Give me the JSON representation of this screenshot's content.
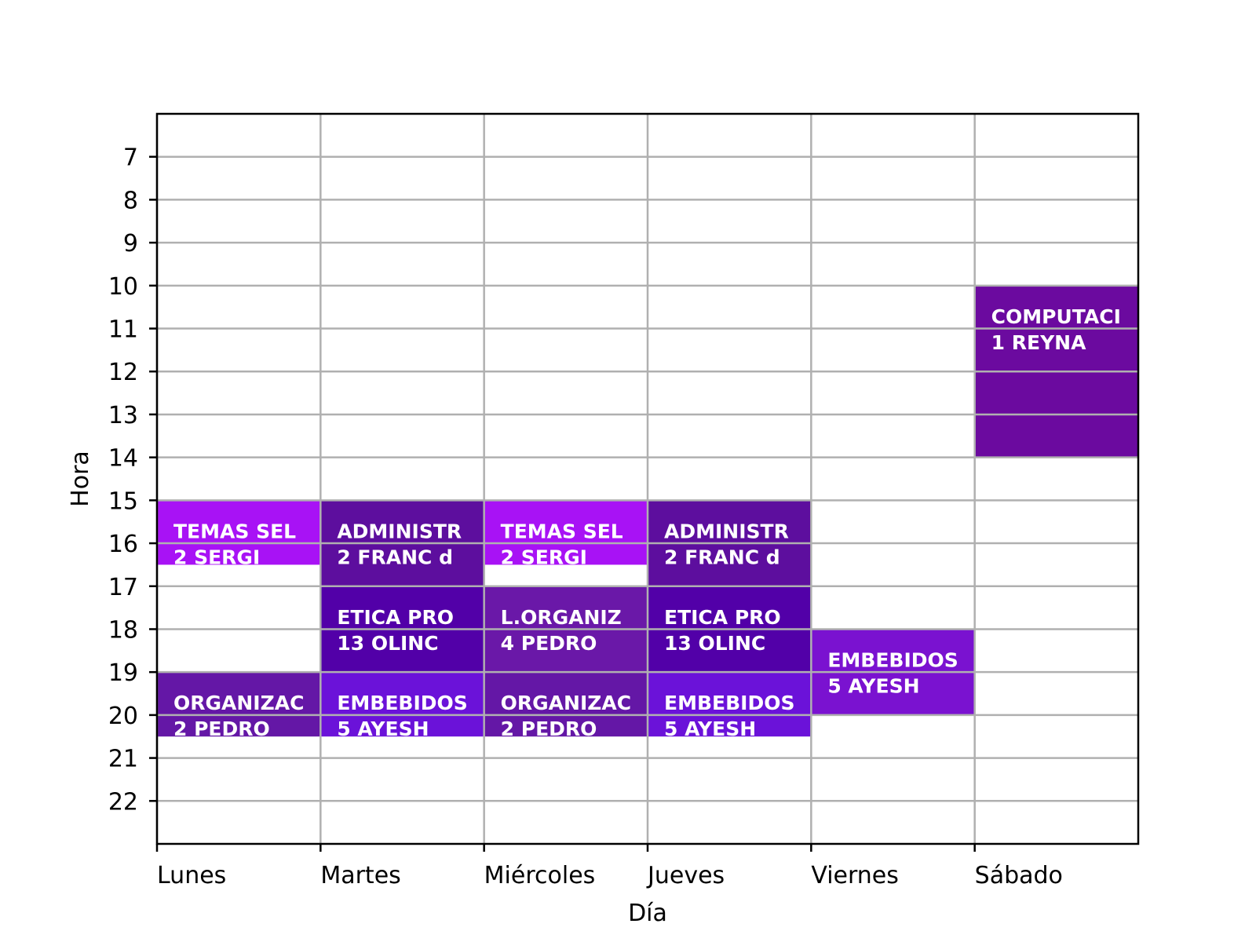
{
  "chart_data": {
    "type": "heatmap",
    "title": "",
    "xlabel": "Día",
    "ylabel": "Hora",
    "days": [
      "Lunes",
      "Martes",
      "Miércoles",
      "Jueves",
      "Viernes",
      "Sábado"
    ],
    "hour_ticks": [
      7,
      8,
      9,
      10,
      11,
      12,
      13,
      14,
      15,
      16,
      17,
      18,
      19,
      20,
      21,
      22
    ],
    "ylim": [
      6,
      23
    ],
    "ylim_inverted": true,
    "grid": true,
    "blocks": [
      {
        "day": "Lunes",
        "start": 15,
        "end": 16.5,
        "line1": "TEMAS SEL",
        "line2": "2 SERGI",
        "color": "#a812f5"
      },
      {
        "day": "Lunes",
        "start": 19,
        "end": 20.5,
        "line1": "ORGANIZAC",
        "line2": "2 PEDRO",
        "color": "#6417a6"
      },
      {
        "day": "Martes",
        "start": 15,
        "end": 17,
        "line1": "ADMINISTR",
        "line2": "2 FRANC d",
        "color": "#5d0e9e"
      },
      {
        "day": "Martes",
        "start": 17,
        "end": 19,
        "line1": "ETICA PRO",
        "line2": "13 OLINC",
        "color": "#5200a8"
      },
      {
        "day": "Martes",
        "start": 19,
        "end": 20.5,
        "line1": "EMBEBIDOS",
        "line2": "5 AYESH",
        "color": "#6b12d9"
      },
      {
        "day": "Miércoles",
        "start": 15,
        "end": 16.5,
        "line1": "TEMAS SEL",
        "line2": "2 SERGI",
        "color": "#a812f5"
      },
      {
        "day": "Miércoles",
        "start": 17,
        "end": 19,
        "line1": "L.ORGANIZ",
        "line2": "4 PEDRO",
        "color": "#6a18a8"
      },
      {
        "day": "Miércoles",
        "start": 19,
        "end": 20.5,
        "line1": "ORGANIZAC",
        "line2": "2 PEDRO",
        "color": "#6417a6"
      },
      {
        "day": "Jueves",
        "start": 15,
        "end": 17,
        "line1": "ADMINISTR",
        "line2": "2 FRANC d",
        "color": "#5d0e9e"
      },
      {
        "day": "Jueves",
        "start": 17,
        "end": 19,
        "line1": "ETICA PRO",
        "line2": "13 OLINC",
        "color": "#5200a8"
      },
      {
        "day": "Jueves",
        "start": 19,
        "end": 20.5,
        "line1": "EMBEBIDOS",
        "line2": "5 AYESH",
        "color": "#6b12d9"
      },
      {
        "day": "Viernes",
        "start": 18,
        "end": 20,
        "line1": "EMBEBIDOS",
        "line2": "5 AYESH",
        "color": "#7a12d0"
      },
      {
        "day": "Sábado",
        "start": 10,
        "end": 14,
        "line1": "COMPUTACI",
        "line2": "1 REYNA",
        "color": "#6b0a9f"
      }
    ]
  }
}
